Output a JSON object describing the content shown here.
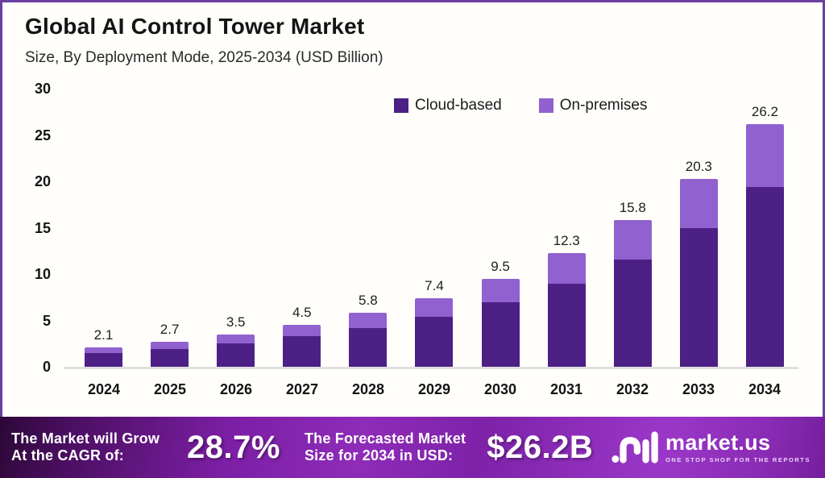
{
  "header": {
    "title": "Global AI Control Tower Market",
    "subtitle": "Size, By Deployment Mode, 2025-2034 (USD Billion)"
  },
  "colors": {
    "cloud": "#4c2085",
    "onprem": "#9161cf",
    "border": "#6b3fa0",
    "axis_line": "#e0dee3",
    "banner_text": "#ffffff"
  },
  "chart_data": {
    "type": "bar",
    "stacked": true,
    "title": "Global AI Control Tower Market Size, By Deployment Mode, 2025-2034 (USD Billion)",
    "categories": [
      "2024",
      "2025",
      "2026",
      "2027",
      "2028",
      "2029",
      "2030",
      "2031",
      "2032",
      "2033",
      "2034"
    ],
    "series": [
      {
        "name": "Cloud-based",
        "color": "#4c2085",
        "values": [
          1.5,
          1.95,
          2.55,
          3.3,
          4.2,
          5.4,
          7.0,
          9.0,
          11.6,
          15.0,
          19.4
        ]
      },
      {
        "name": "On-premises",
        "color": "#9161cf",
        "values": [
          0.6,
          0.75,
          0.95,
          1.2,
          1.6,
          2.0,
          2.5,
          3.3,
          4.2,
          5.3,
          6.8
        ]
      }
    ],
    "totals": [
      2.1,
      2.7,
      3.5,
      4.5,
      5.8,
      7.4,
      9.5,
      12.3,
      15.8,
      20.3,
      26.2
    ],
    "total_labels": [
      "2.1",
      "2.7",
      "3.5",
      "4.5",
      "5.8",
      "7.4",
      "9.5",
      "12.3",
      "15.8",
      "20.3",
      "26.2"
    ],
    "xlabel": "",
    "ylabel": "",
    "ylim": [
      0,
      30
    ],
    "yticks": [
      0,
      5,
      10,
      15,
      20,
      25,
      30
    ],
    "grid": false,
    "legend_position": "top"
  },
  "legend": [
    {
      "label": "Cloud-based",
      "color": "#4c2085"
    },
    {
      "label": "On-premises",
      "color": "#9161cf"
    }
  ],
  "banner": {
    "cagr_label_line1": "The Market will Grow",
    "cagr_label_line2": "At the CAGR of:",
    "cagr_value": "28.7%",
    "forecast_label_line1": "The Forecasted Market",
    "forecast_label_line2": "Size for 2034 in USD:",
    "forecast_value": "$26.2B",
    "logo_text": "market.us",
    "logo_tagline": "ONE STOP SHOP FOR THE REPORTS"
  }
}
